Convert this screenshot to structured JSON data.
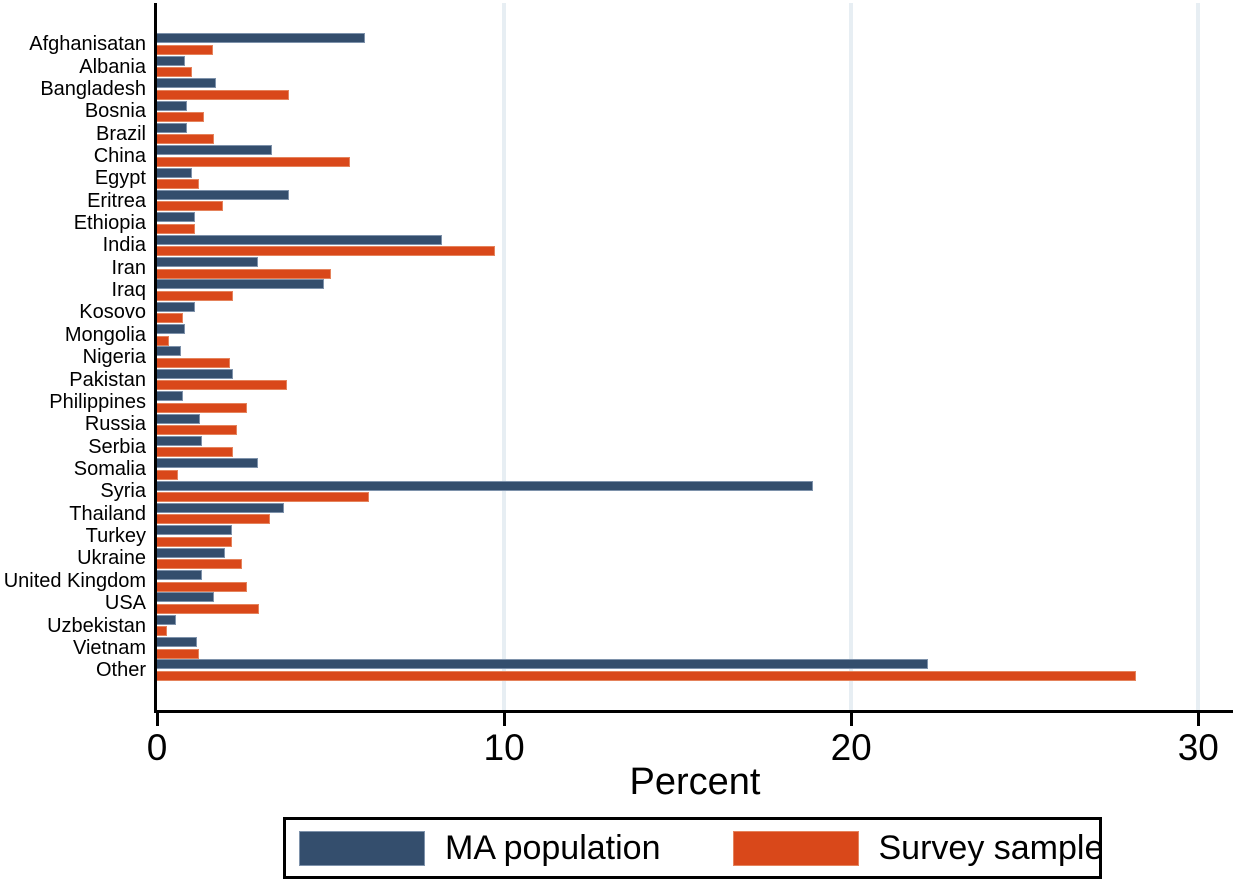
{
  "chart_data": {
    "type": "bar",
    "orientation": "horizontal",
    "title": "",
    "xlabel": "Percent",
    "ylabel": "",
    "xlim": [
      0,
      31
    ],
    "xticks": [
      0,
      10,
      20,
      30
    ],
    "grid": true,
    "grid_color": "#e7eef3",
    "axis_color": "#000000",
    "legend_position": "bottom",
    "categories": [
      "Afghanisatan",
      "Albania",
      "Bangladesh",
      "Bosnia",
      "Brazil",
      "China",
      "Egypt",
      "Eritrea",
      "Ethiopia",
      "India",
      "Iran",
      "Iraq",
      "Kosovo",
      "Mongolia",
      "Nigeria",
      "Pakistan",
      "Philippines",
      "Russia",
      "Serbia",
      "Somalia",
      "Syria",
      "Thailand",
      "Turkey",
      "Ukraine",
      "United Kingdom",
      "USA",
      "Uzbekistan",
      "Vietnam",
      "Other"
    ],
    "series": [
      {
        "name": "MA population",
        "color": "#344E6D",
        "values": [
          6.0,
          0.8,
          1.7,
          0.85,
          0.85,
          3.3,
          1.0,
          3.8,
          1.1,
          8.2,
          2.9,
          4.8,
          1.1,
          0.8,
          0.7,
          2.2,
          0.75,
          1.25,
          1.3,
          2.9,
          18.9,
          3.65,
          2.15,
          1.95,
          1.3,
          1.65,
          0.55,
          1.15,
          22.2
        ]
      },
      {
        "name": "Survey sample",
        "color": "#D9481A",
        "values": [
          1.6,
          1.0,
          3.8,
          1.35,
          1.65,
          5.55,
          1.2,
          1.9,
          1.1,
          9.75,
          5.0,
          2.2,
          0.75,
          0.35,
          2.1,
          3.75,
          2.6,
          2.3,
          2.2,
          0.6,
          6.1,
          3.25,
          2.15,
          2.45,
          2.6,
          2.95,
          0.3,
          1.2,
          28.2
        ]
      }
    ]
  }
}
